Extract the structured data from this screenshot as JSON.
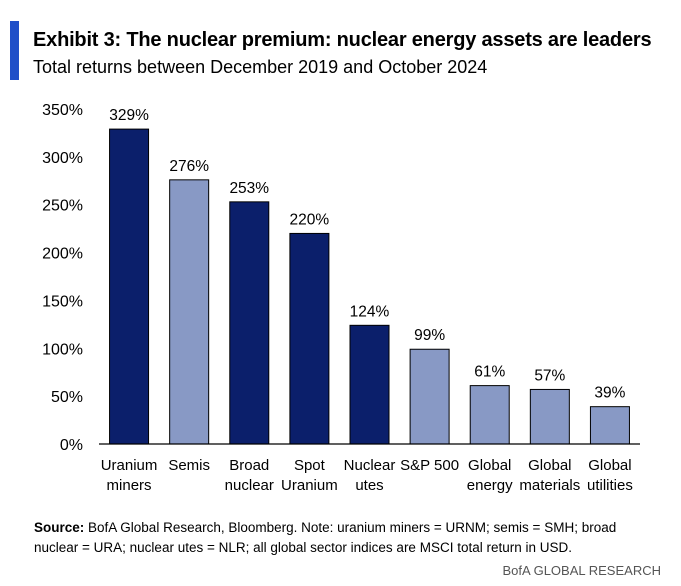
{
  "header": {
    "title": "Exhibit 3: The nuclear premium: nuclear energy assets are leaders",
    "subtitle": "Total returns between December 2019 and October 2024"
  },
  "chart_data": {
    "type": "bar",
    "categories": [
      [
        "Uranium",
        "miners"
      ],
      [
        "Semis"
      ],
      [
        "Broad",
        "nuclear"
      ],
      [
        "Spot",
        "Uranium"
      ],
      [
        "Nuclear",
        "utes"
      ],
      [
        "S&P 500"
      ],
      [
        "Global",
        "energy"
      ],
      [
        "Global",
        "materials"
      ],
      [
        "Global",
        "utilities"
      ]
    ],
    "values": [
      329,
      276,
      253,
      220,
      124,
      99,
      61,
      57,
      39
    ],
    "data_labels": [
      "329%",
      "276%",
      "253%",
      "220%",
      "124%",
      "99%",
      "61%",
      "57%",
      "39%"
    ],
    "colors": [
      "#0b1f6b",
      "#8899c5",
      "#0b1f6b",
      "#0b1f6b",
      "#0b1f6b",
      "#8899c5",
      "#8899c5",
      "#8899c5",
      "#8899c5"
    ],
    "ylim": [
      0,
      350
    ],
    "yticks": [
      0,
      50,
      100,
      150,
      200,
      250,
      300,
      350
    ],
    "ytick_labels": [
      "0%",
      "50%",
      "100%",
      "150%",
      "200%",
      "250%",
      "300%",
      "350%"
    ],
    "grid": false
  },
  "footer": {
    "source_label": "Source:",
    "source_text": " BofA Global Research, Bloomberg. Note: uranium miners = URNM; semis = SMH; broad nuclear = URA; nuclear utes = NLR; all global sector indices are MSCI total return in USD.",
    "brand": "BofA GLOBAL RESEARCH"
  }
}
